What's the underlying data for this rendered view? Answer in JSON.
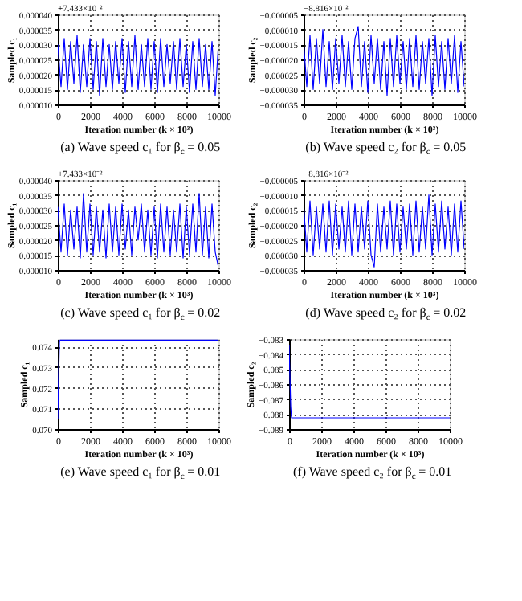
{
  "chart_data": [
    {
      "type": "line",
      "title": "(a) Wave speed c₁ for β$_{c}$ = 0.05",
      "xlabel": "Iteration number (k × 10³)",
      "ylabel": "Sampled c₁",
      "annotations": [
        "+7.433×10⁻²"
      ],
      "grid": true,
      "line_style": "solid",
      "marker": "none",
      "x": [
        0,
        200,
        400,
        600,
        800,
        1000,
        1200,
        1400,
        1600,
        1800,
        2000,
        2200,
        2400,
        2600,
        2800,
        3000,
        3200,
        3400,
        3600,
        3800,
        4000,
        4200,
        4400,
        4600,
        4800,
        5000,
        5200,
        5400,
        5600,
        5800,
        6000,
        6200,
        6400,
        6600,
        6800,
        7000,
        7200,
        7400,
        7600,
        7800,
        8000,
        8200,
        8400,
        8600,
        8800,
        9000,
        9200,
        9400,
        9600,
        9800,
        10000
      ],
      "series": [
        {
          "color": "#0000ff",
          "values": [
            3e-05,
            1.6e-05,
            3.2e-05,
            1.5e-05,
            3.1e-05,
            1.7e-05,
            3.3e-05,
            1.4e-05,
            3e-05,
            1.6e-05,
            3.2e-05,
            1.5e-05,
            3.1e-05,
            1.3e-05,
            3.2e-05,
            1.6e-05,
            3e-05,
            1.5e-05,
            3.1e-05,
            1.7e-05,
            3.2e-05,
            1.4e-05,
            3.1e-05,
            1.6e-05,
            3.3e-05,
            1.5e-05,
            3e-05,
            1.6e-05,
            3.2e-05,
            1.5e-05,
            3.1e-05,
            1.4e-05,
            3.2e-05,
            1.6e-05,
            3e-05,
            1.7e-05,
            3.1e-05,
            1.5e-05,
            3.2e-05,
            1.6e-05,
            3e-05,
            1.4e-05,
            3.1e-05,
            1.5e-05,
            3.2e-05,
            1.6e-05,
            3e-05,
            1.5e-05,
            3.1e-05,
            1.3e-05,
            3e-05
          ]
        }
      ],
      "xlim": [
        0,
        10000
      ],
      "xticks": [
        0,
        2000,
        4000,
        6000,
        8000,
        10000
      ],
      "ylim": [
        1e-05,
        4e-05
      ],
      "yticks": [
        {
          "value": 1e-05,
          "label": "0.000010"
        },
        {
          "value": 1.5e-05,
          "label": "0.000015"
        },
        {
          "value": 2e-05,
          "label": "0.000020"
        },
        {
          "value": 2.5e-05,
          "label": "0.000025"
        },
        {
          "value": 3e-05,
          "label": "0.000030"
        },
        {
          "value": 3.5e-05,
          "label": "0.000035"
        },
        {
          "value": 4e-05,
          "label": "0.000040"
        }
      ]
    },
    {
      "type": "line",
      "title": "(b) Wave speed c₂ for β$_{c}$ = 0.05",
      "xlabel": "Iteration number (k × 10³)",
      "ylabel": "Sampled c₂",
      "annotations": [
        "−8.816×10⁻²"
      ],
      "grid": true,
      "line_style": "solid",
      "marker": "none",
      "x": [
        0,
        200,
        400,
        600,
        800,
        1000,
        1200,
        1400,
        1600,
        1800,
        2000,
        2200,
        2400,
        2600,
        2800,
        3000,
        3200,
        3400,
        3600,
        3800,
        4000,
        4200,
        4400,
        4600,
        4800,
        5000,
        5200,
        5400,
        5600,
        5800,
        6000,
        6200,
        6400,
        6600,
        6800,
        7000,
        7200,
        7400,
        7600,
        7800,
        8000,
        8200,
        8400,
        8600,
        8800,
        9000,
        9200,
        9400,
        9600,
        9800,
        10000
      ],
      "series": [
        {
          "color": "#0000ff",
          "values": [
            -1.4e-05,
            -2.9e-05,
            -1.2e-05,
            -3e-05,
            -1.3e-05,
            -2.8e-05,
            -1e-05,
            -2.9e-05,
            -1.4e-05,
            -3e-05,
            -1.3e-05,
            -2.8e-05,
            -1.2e-05,
            -2.9e-05,
            -1.4e-05,
            -3e-05,
            -1.3e-05,
            -9e-06,
            -2.9e-05,
            -1.4e-05,
            -3.1e-05,
            -1.2e-05,
            -2.8e-05,
            -1.3e-05,
            -3e-05,
            -1.4e-05,
            -3.2e-05,
            -1.3e-05,
            -2.9e-05,
            -1.2e-05,
            -2.8e-05,
            -1.4e-05,
            -3e-05,
            -1.3e-05,
            -2.9e-05,
            -1.2e-05,
            -3e-05,
            -1.4e-05,
            -2.8e-05,
            -1.3e-05,
            -3.2e-05,
            -1.2e-05,
            -2.9e-05,
            -1.4e-05,
            -3e-05,
            -1.3e-05,
            -2.8e-05,
            -1.2e-05,
            -3.1e-05,
            -1.4e-05,
            -2.9e-05
          ]
        }
      ],
      "xlim": [
        0,
        10000
      ],
      "xticks": [
        0,
        2000,
        4000,
        6000,
        8000,
        10000
      ],
      "ylim": [
        -3.5e-05,
        -5e-06
      ],
      "yticks": [
        {
          "value": -3.5e-05,
          "label": "−0.000035"
        },
        {
          "value": -3e-05,
          "label": "−0.000030"
        },
        {
          "value": -2.5e-05,
          "label": "−0.000025"
        },
        {
          "value": -2e-05,
          "label": "−0.000020"
        },
        {
          "value": -1.5e-05,
          "label": "−0.000015"
        },
        {
          "value": -1e-05,
          "label": "−0.000010"
        },
        {
          "value": -5e-06,
          "label": "−0.000005"
        }
      ]
    },
    {
      "type": "line",
      "title": "(c) Wave speed c₁ for β$_{c}$ = 0.02",
      "xlabel": "Iteration number (k × 10³)",
      "ylabel": "Sampled c₁",
      "annotations": [
        "+7.433×10⁻²"
      ],
      "grid": true,
      "line_style": "solid",
      "marker": "none",
      "x": [
        0,
        200,
        400,
        600,
        800,
        1000,
        1200,
        1400,
        1600,
        1800,
        2000,
        2200,
        2400,
        2600,
        2800,
        3000,
        3200,
        3400,
        3600,
        3800,
        4000,
        4200,
        4400,
        4600,
        4800,
        5000,
        5200,
        5400,
        5600,
        5800,
        6000,
        6200,
        6400,
        6600,
        6800,
        7000,
        7200,
        7400,
        7600,
        7800,
        8000,
        8200,
        8400,
        8600,
        8800,
        9000,
        9200,
        9400,
        9600,
        9800,
        10000
      ],
      "series": [
        {
          "color": "#0000ff",
          "values": [
            3.1e-05,
            1.6e-05,
            3.2e-05,
            1.5e-05,
            3e-05,
            1.7e-05,
            3.1e-05,
            1.4e-05,
            3.55e-05,
            1.6e-05,
            3.2e-05,
            1.5e-05,
            3.1e-05,
            1.6e-05,
            3e-05,
            1.4e-05,
            3.2e-05,
            1.6e-05,
            3.1e-05,
            1.5e-05,
            3.2e-05,
            1.7e-05,
            3e-05,
            1.5e-05,
            3.1e-05,
            2e-05,
            3.2e-05,
            1.6e-05,
            3e-05,
            1.5e-05,
            3.1e-05,
            1.4e-05,
            3.2e-05,
            1.6e-05,
            3.1e-05,
            1.5e-05,
            3e-05,
            1.6e-05,
            3.2e-05,
            1.4e-05,
            3.1e-05,
            1.5e-05,
            3.2e-05,
            1.6e-05,
            3.55e-05,
            1.5e-05,
            3.1e-05,
            1.4e-05,
            3.2e-05,
            1.6e-05,
            1.1e-05
          ]
        }
      ],
      "xlim": [
        0,
        10000
      ],
      "xticks": [
        0,
        2000,
        4000,
        6000,
        8000,
        10000
      ],
      "ylim": [
        1e-05,
        4e-05
      ],
      "yticks": [
        {
          "value": 1e-05,
          "label": "0.000010"
        },
        {
          "value": 1.5e-05,
          "label": "0.000015"
        },
        {
          "value": 2e-05,
          "label": "0.000020"
        },
        {
          "value": 2.5e-05,
          "label": "0.000025"
        },
        {
          "value": 3e-05,
          "label": "0.000030"
        },
        {
          "value": 3.5e-05,
          "label": "0.000035"
        },
        {
          "value": 4e-05,
          "label": "0.000040"
        }
      ]
    },
    {
      "type": "line",
      "title": "(d) Wave speed c₂ for β$_{c}$ = 0.02",
      "xlabel": "Iteration number (k × 10³)",
      "ylabel": "Sampled c₂",
      "annotations": [
        "−8.816×10⁻²"
      ],
      "grid": true,
      "line_style": "solid",
      "marker": "none",
      "x": [
        0,
        200,
        400,
        600,
        800,
        1000,
        1200,
        1400,
        1600,
        1800,
        2000,
        2200,
        2400,
        2600,
        2800,
        3000,
        3200,
        3400,
        3600,
        3800,
        4000,
        4200,
        4400,
        4600,
        4800,
        5000,
        5200,
        5400,
        5600,
        5800,
        6000,
        6200,
        6400,
        6600,
        6800,
        7000,
        7200,
        7400,
        7600,
        7800,
        8000,
        8200,
        8400,
        8600,
        8800,
        9000,
        9200,
        9400,
        9600,
        9800,
        10000
      ],
      "series": [
        {
          "color": "#0000ff",
          "values": [
            -1.3e-05,
            -2.9e-05,
            -1.2e-05,
            -3e-05,
            -1.4e-05,
            -2.8e-05,
            -1.3e-05,
            -2.9e-05,
            -1.2e-05,
            -3e-05,
            -1.3e-05,
            -2.8e-05,
            -1.4e-05,
            -2.9e-05,
            -1.2e-05,
            -3e-05,
            -1.3e-05,
            -2.9e-05,
            -1.4e-05,
            -2.8e-05,
            -1.2e-05,
            -3e-05,
            -3.4e-05,
            -1.3e-05,
            -2.9e-05,
            -1.4e-05,
            -2.8e-05,
            -1.2e-05,
            -3e-05,
            -1.3e-05,
            -2.9e-05,
            -1.4e-05,
            -2.8e-05,
            -1.3e-05,
            -3e-05,
            -1.2e-05,
            -2.9e-05,
            -1.4e-05,
            -2.8e-05,
            -1e-05,
            -3e-05,
            -1.3e-05,
            -2.9e-05,
            -1.2e-05,
            -2.8e-05,
            -1.4e-05,
            -3e-05,
            -1.3e-05,
            -2.9e-05,
            -1.2e-05,
            -2.8e-05
          ]
        }
      ],
      "xlim": [
        0,
        10000
      ],
      "xticks": [
        0,
        2000,
        4000,
        6000,
        8000,
        10000
      ],
      "ylim": [
        -3.5e-05,
        -5e-06
      ],
      "yticks": [
        {
          "value": -3.5e-05,
          "label": "−0.000035"
        },
        {
          "value": -3e-05,
          "label": "−0.000030"
        },
        {
          "value": -2.5e-05,
          "label": "−0.000025"
        },
        {
          "value": -2e-05,
          "label": "−0.000020"
        },
        {
          "value": -1.5e-05,
          "label": "−0.000015"
        },
        {
          "value": -1e-05,
          "label": "−0.000010"
        },
        {
          "value": -5e-06,
          "label": "−0.000005"
        }
      ]
    },
    {
      "type": "line",
      "title": "(e) Wave speed c₁ for β$_{c}$ = 0.01",
      "xlabel": "Iteration number (k × 10³)",
      "ylabel": "Sampled c₁",
      "grid": true,
      "line_style": "solid",
      "marker": "none",
      "x": [
        0,
        50,
        100,
        150,
        10000
      ],
      "series": [
        {
          "color": "#0000ff",
          "values": [
            0.0705,
            0.0725,
            0.0742,
            0.0743,
            0.0743
          ]
        }
      ],
      "xlim": [
        0,
        10000
      ],
      "xticks": [
        0,
        2000,
        4000,
        6000,
        8000,
        10000
      ],
      "ylim": [
        0.07,
        0.07435
      ],
      "yticks": [
        {
          "value": 0.07,
          "label": "0.070"
        },
        {
          "value": 0.071,
          "label": "0.071"
        },
        {
          "value": 0.072,
          "label": "0.072"
        },
        {
          "value": 0.073,
          "label": "0.073"
        },
        {
          "value": 0.074,
          "label": "0.074"
        }
      ]
    },
    {
      "type": "line",
      "title": "(f) Wave speed c₂ for β$_{c}$ = 0.01",
      "xlabel": "Iteration number (k × 10³)",
      "ylabel": "Sampled c₂",
      "grid": true,
      "line_style": "solid",
      "marker": "none",
      "x": [
        0,
        50,
        100,
        150,
        10000
      ],
      "series": [
        {
          "color": "#0000ff",
          "values": [
            -0.0834,
            -0.0855,
            -0.0875,
            -0.08825,
            -0.08825
          ]
        }
      ],
      "xlim": [
        0,
        10000
      ],
      "xticks": [
        0,
        2000,
        4000,
        6000,
        8000,
        10000
      ],
      "ylim": [
        -0.089,
        -0.083
      ],
      "yticks": [
        {
          "value": -0.089,
          "label": "−0.089"
        },
        {
          "value": -0.088,
          "label": "−0.088"
        },
        {
          "value": -0.087,
          "label": "−0.087"
        },
        {
          "value": -0.086,
          "label": "−0.086"
        },
        {
          "value": -0.085,
          "label": "−0.085"
        },
        {
          "value": -0.084,
          "label": "−0.084"
        },
        {
          "value": -0.083,
          "label": "−0.083"
        }
      ]
    }
  ]
}
